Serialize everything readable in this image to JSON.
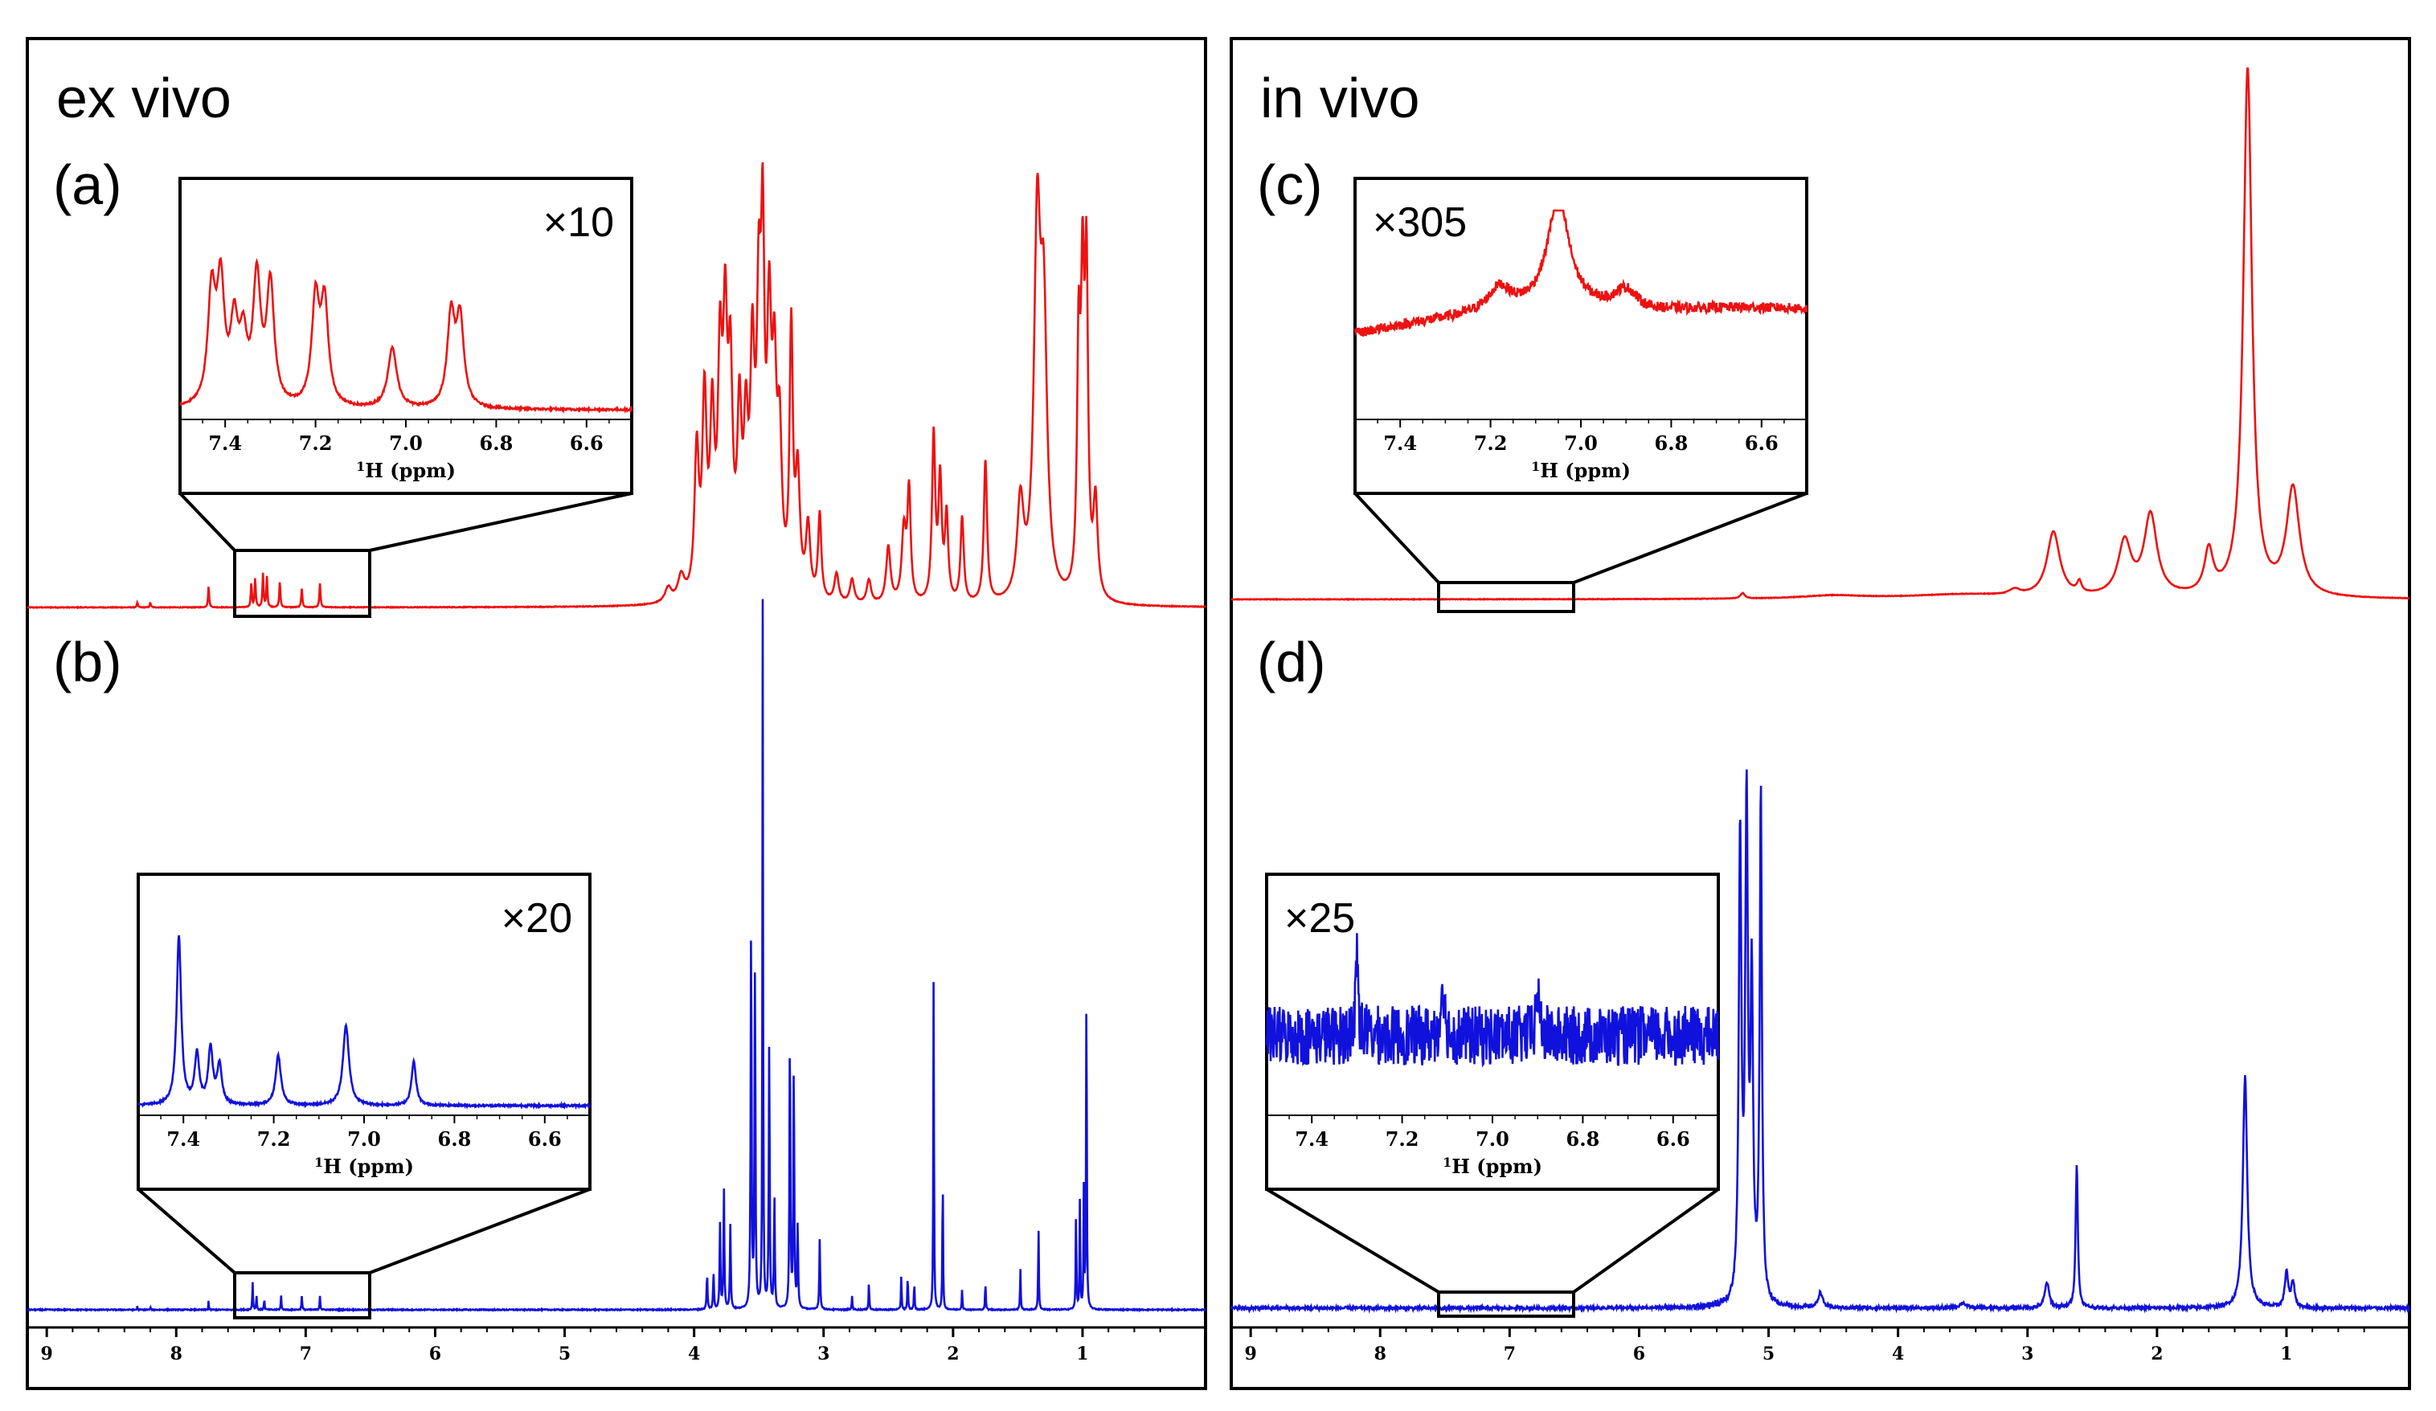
{
  "panels": {
    "left": {
      "title": "ex vivo"
    },
    "right": {
      "title": "in vivo"
    }
  },
  "colors": {
    "exvivo_red": "#ee1111",
    "invivo_blue": "#1111dd",
    "frame": "#000000"
  },
  "chart_data": [
    {
      "type": "line",
      "id": "a",
      "panel_label": "(a)",
      "group": "ex vivo",
      "color": "#ee1111",
      "xlabel": "",
      "x_axis_reversed": true,
      "xlim": [
        9.15,
        0.05
      ],
      "peaks": [
        [
          8.3,
          0.01,
          0.005
        ],
        [
          8.2,
          0.01,
          0.005
        ],
        [
          7.75,
          0.045,
          0.005
        ],
        [
          7.42,
          0.05,
          0.005
        ],
        [
          7.39,
          0.06,
          0.005
        ],
        [
          7.33,
          0.07,
          0.005
        ],
        [
          7.3,
          0.065,
          0.005
        ],
        [
          7.2,
          0.055,
          0.005
        ],
        [
          7.03,
          0.04,
          0.005
        ],
        [
          6.89,
          0.05,
          0.005
        ],
        [
          4.2,
          0.03,
          0.03
        ],
        [
          4.1,
          0.05,
          0.03
        ],
        [
          3.98,
          0.3,
          0.02
        ],
        [
          3.92,
          0.4,
          0.02
        ],
        [
          3.86,
          0.35,
          0.02
        ],
        [
          3.8,
          0.45,
          0.02
        ],
        [
          3.76,
          0.5,
          0.02
        ],
        [
          3.72,
          0.42,
          0.02
        ],
        [
          3.65,
          0.35,
          0.02
        ],
        [
          3.6,
          0.3,
          0.02
        ],
        [
          3.55,
          0.45,
          0.02
        ],
        [
          3.5,
          0.55,
          0.02
        ],
        [
          3.47,
          0.62,
          0.015
        ],
        [
          3.42,
          0.52,
          0.02
        ],
        [
          3.38,
          0.4,
          0.02
        ],
        [
          3.34,
          0.3,
          0.02
        ],
        [
          3.25,
          0.55,
          0.015
        ],
        [
          3.2,
          0.25,
          0.02
        ],
        [
          3.12,
          0.15,
          0.02
        ],
        [
          3.03,
          0.18,
          0.015
        ],
        [
          2.9,
          0.06,
          0.02
        ],
        [
          2.78,
          0.05,
          0.02
        ],
        [
          2.65,
          0.05,
          0.02
        ],
        [
          2.5,
          0.12,
          0.02
        ],
        [
          2.38,
          0.15,
          0.02
        ],
        [
          2.34,
          0.23,
          0.015
        ],
        [
          2.15,
          0.35,
          0.015
        ],
        [
          2.1,
          0.25,
          0.015
        ],
        [
          2.05,
          0.18,
          0.015
        ],
        [
          1.93,
          0.18,
          0.015
        ],
        [
          1.75,
          0.3,
          0.015
        ],
        [
          1.48,
          0.2,
          0.03
        ],
        [
          1.35,
          0.75,
          0.03
        ],
        [
          1.3,
          0.55,
          0.03
        ],
        [
          1.03,
          0.5,
          0.015
        ],
        [
          1,
          0.58,
          0.015
        ],
        [
          0.97,
          0.65,
          0.015
        ],
        [
          0.9,
          0.2,
          0.02
        ]
      ],
      "inset": {
        "label": "×10",
        "magnification": 10,
        "xlim": [
          7.5,
          6.5
        ],
        "ticks": [
          7.4,
          7.2,
          7.0,
          6.8,
          6.6
        ],
        "tick_labels": [
          "7.4",
          "7.2",
          "7.0",
          "6.8",
          "6.6"
        ],
        "xlabel_sup": "1",
        "xlabel": "H (ppm)",
        "zoom_region": [
          7.5,
          6.5
        ],
        "peaks": [
          [
            7.43,
            0.55,
            0.01
          ],
          [
            7.41,
            0.58,
            0.01
          ],
          [
            7.38,
            0.38,
            0.01
          ],
          [
            7.36,
            0.3,
            0.01
          ],
          [
            7.33,
            0.62,
            0.01
          ],
          [
            7.3,
            0.6,
            0.01
          ],
          [
            7.2,
            0.52,
            0.01
          ],
          [
            7.18,
            0.5,
            0.01
          ],
          [
            7.03,
            0.3,
            0.012
          ],
          [
            6.9,
            0.45,
            0.01
          ],
          [
            6.88,
            0.43,
            0.01
          ]
        ]
      }
    },
    {
      "type": "line",
      "id": "b",
      "panel_label": "(b)",
      "group": "ex vivo",
      "color": "#1111dd",
      "xlabel": "",
      "x_axis_reversed": true,
      "xlim": [
        9.15,
        0.05
      ],
      "peaks": [
        [
          8.3,
          0.005,
          0.002
        ],
        [
          8.2,
          0.005,
          0.002
        ],
        [
          7.75,
          0.015,
          0.002
        ],
        [
          7.41,
          0.04,
          0.003
        ],
        [
          7.38,
          0.02,
          0.003
        ],
        [
          7.32,
          0.015,
          0.003
        ],
        [
          7.19,
          0.02,
          0.003
        ],
        [
          7.03,
          0.02,
          0.003
        ],
        [
          6.89,
          0.02,
          0.003
        ],
        [
          3.9,
          0.05,
          0.004
        ],
        [
          3.85,
          0.05,
          0.004
        ],
        [
          3.8,
          0.12,
          0.004
        ],
        [
          3.77,
          0.17,
          0.004
        ],
        [
          3.72,
          0.12,
          0.004
        ],
        [
          3.56,
          0.55,
          0.004
        ],
        [
          3.53,
          0.48,
          0.004
        ],
        [
          3.47,
          1,
          0.003
        ],
        [
          3.42,
          0.38,
          0.004
        ],
        [
          3.38,
          0.16,
          0.004
        ],
        [
          3.26,
          0.4,
          0.004
        ],
        [
          3.23,
          0.35,
          0.004
        ],
        [
          3.2,
          0.12,
          0.004
        ],
        [
          3.03,
          0.1,
          0.004
        ],
        [
          2.78,
          0.02,
          0.003
        ],
        [
          2.65,
          0.04,
          0.003
        ],
        [
          2.4,
          0.05,
          0.003
        ],
        [
          2.35,
          0.05,
          0.003
        ],
        [
          2.3,
          0.04,
          0.003
        ],
        [
          2.15,
          0.48,
          0.003
        ],
        [
          2.08,
          0.2,
          0.003
        ],
        [
          1.93,
          0.03,
          0.003
        ],
        [
          1.75,
          0.04,
          0.003
        ],
        [
          1.48,
          0.06,
          0.003
        ],
        [
          1.34,
          0.12,
          0.003
        ],
        [
          1.05,
          0.14,
          0.003
        ],
        [
          1.02,
          0.16,
          0.003
        ],
        [
          0.99,
          0.17,
          0.003
        ],
        [
          0.97,
          0.5,
          0.003
        ]
      ],
      "inset": {
        "label": "×20",
        "magnification": 20,
        "xlim": [
          7.5,
          6.5
        ],
        "ticks": [
          7.4,
          7.2,
          7.0,
          6.8,
          6.6
        ],
        "tick_labels": [
          "7.4",
          "7.2",
          "7.0",
          "6.8",
          "6.6"
        ],
        "xlabel_sup": "1",
        "xlabel": "H (ppm)",
        "zoom_region": [
          7.5,
          6.5
        ],
        "peaks": [
          [
            7.41,
            0.85,
            0.006
          ],
          [
            7.37,
            0.25,
            0.006
          ],
          [
            7.34,
            0.28,
            0.006
          ],
          [
            7.32,
            0.2,
            0.006
          ],
          [
            7.19,
            0.25,
            0.007
          ],
          [
            7.04,
            0.4,
            0.008
          ],
          [
            6.89,
            0.22,
            0.006
          ]
        ]
      }
    },
    {
      "type": "line",
      "id": "c",
      "panel_label": "(c)",
      "group": "in vivo",
      "color": "#ee1111",
      "xlabel": "",
      "x_axis_reversed": true,
      "xlim": [
        9.15,
        0.05
      ],
      "peaks": [
        [
          5.2,
          0.01,
          0.02
        ],
        [
          4.5,
          0.006,
          0.3
        ],
        [
          3.5,
          0.008,
          0.5
        ],
        [
          3.1,
          0.01,
          0.05
        ],
        [
          2.8,
          0.12,
          0.06
        ],
        [
          2.6,
          0.02,
          0.02
        ],
        [
          2.25,
          0.1,
          0.06
        ],
        [
          2.05,
          0.15,
          0.06
        ],
        [
          1.6,
          0.08,
          0.04
        ],
        [
          1.3,
          0.98,
          0.04
        ],
        [
          0.95,
          0.2,
          0.06
        ]
      ],
      "inset": {
        "label": "×305",
        "magnification": 305,
        "xlim": [
          7.5,
          6.5
        ],
        "ticks": [
          7.4,
          7.2,
          7.0,
          6.8,
          6.6
        ],
        "tick_labels": [
          "7.4",
          "7.2",
          "7.0",
          "6.8",
          "6.6"
        ],
        "xlabel_sup": "1",
        "xlabel": "H (ppm)",
        "zoom_region": [
          7.5,
          6.5
        ],
        "peaks": [
          [
            7.05,
            0.55,
            0.03
          ],
          [
            7.18,
            0.12,
            0.03
          ],
          [
            6.9,
            0.1,
            0.03
          ]
        ]
      }
    },
    {
      "type": "line",
      "id": "d",
      "panel_label": "(d)",
      "group": "in vivo",
      "color": "#1111dd",
      "xlabel": "",
      "x_axis_reversed": true,
      "xlim": [
        9.15,
        0.05
      ],
      "peaks": [
        [
          5.22,
          0.9,
          0.012
        ],
        [
          5.17,
          0.95,
          0.012
        ],
        [
          5.13,
          0.6,
          0.012
        ],
        [
          5.06,
          1.0,
          0.01
        ],
        [
          4.6,
          0.03,
          0.02
        ],
        [
          3.5,
          0.01,
          0.03
        ],
        [
          2.85,
          0.05,
          0.02
        ],
        [
          2.62,
          0.28,
          0.01
        ],
        [
          1.32,
          0.45,
          0.02
        ],
        [
          1.0,
          0.07,
          0.015
        ],
        [
          0.95,
          0.05,
          0.015
        ]
      ],
      "inset": {
        "label": "×25",
        "magnification": 25,
        "xlim": [
          7.5,
          6.5
        ],
        "ticks": [
          7.4,
          7.2,
          7.0,
          6.8,
          6.6
        ],
        "tick_labels": [
          "7.4",
          "7.2",
          "7.0",
          "6.8",
          "6.6"
        ],
        "xlabel_sup": "1",
        "xlabel": "H (ppm)",
        "zoom_region": [
          7.5,
          6.5
        ],
        "peaks": [
          [
            7.3,
            0.5,
            0.004
          ],
          [
            7.11,
            0.35,
            0.004
          ],
          [
            6.9,
            0.3,
            0.004
          ]
        ]
      }
    }
  ],
  "axes": {
    "left": {
      "ticks": [
        9,
        8,
        7,
        6,
        5,
        4,
        3,
        2,
        1
      ],
      "tick_labels": [
        "9",
        "8",
        "7",
        "6",
        "5",
        "4",
        "3",
        "2",
        "1"
      ]
    },
    "right": {
      "ticks": [
        9,
        8,
        7,
        6,
        5,
        4,
        3,
        2,
        1
      ],
      "tick_labels": [
        "9",
        "8",
        "7",
        "6",
        "5",
        "4",
        "3",
        "2",
        "1"
      ]
    }
  }
}
